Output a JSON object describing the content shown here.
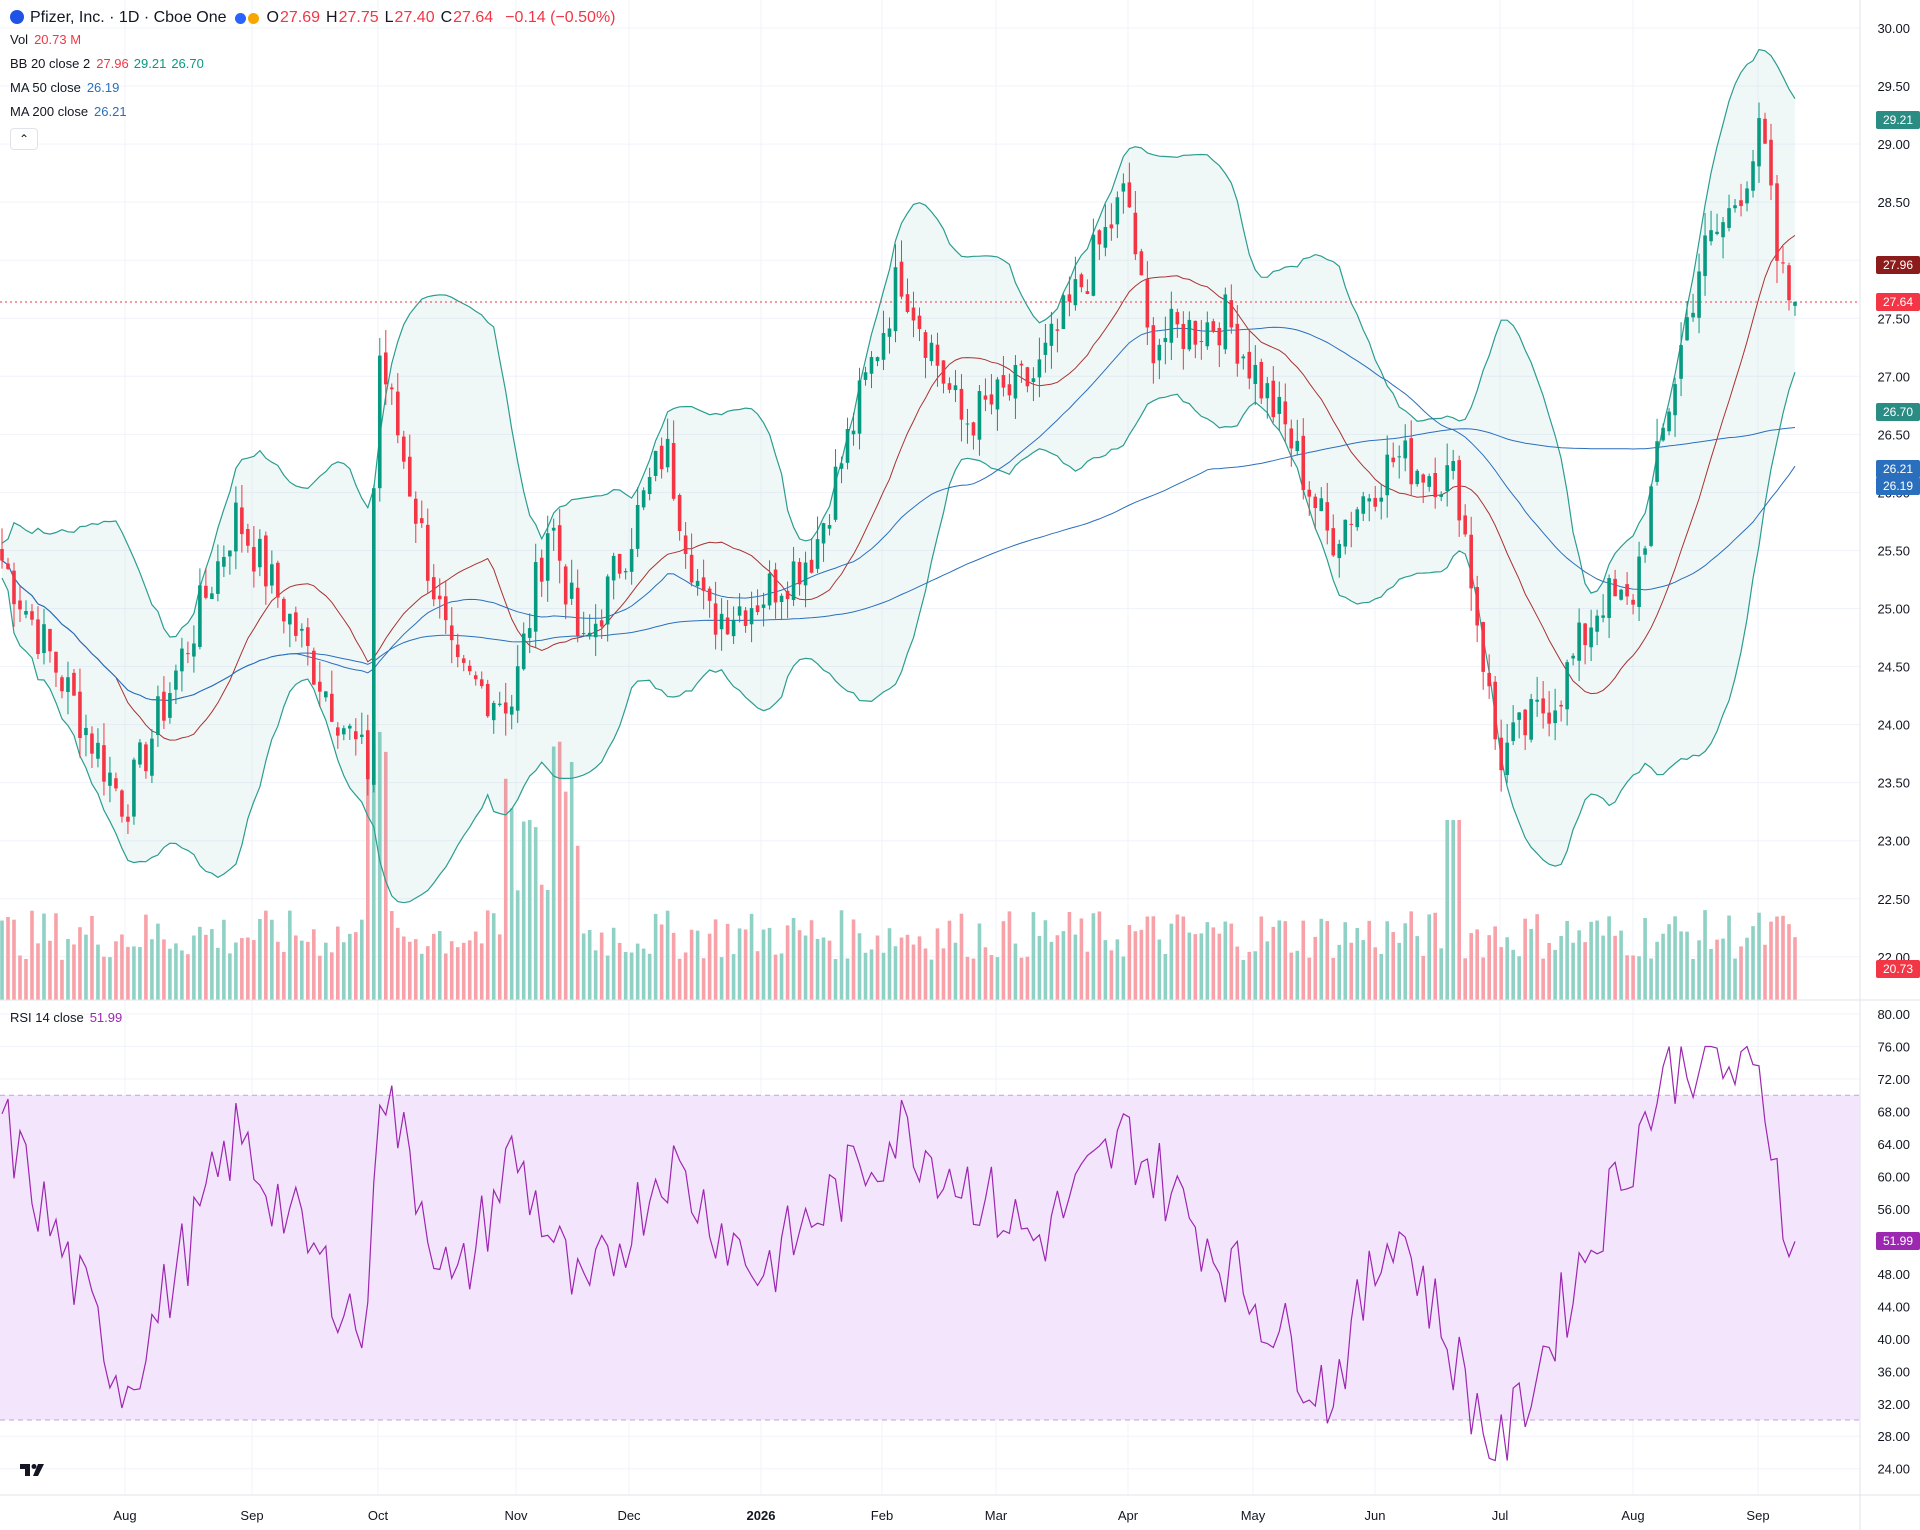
{
  "header": {
    "symbol": "Pfizer, Inc. · 1D · Cboe One",
    "ohlc": [
      {
        "k": "O",
        "v": "27.69"
      },
      {
        "k": "H",
        "v": "27.75"
      },
      {
        "k": "L",
        "v": "27.40"
      },
      {
        "k": "C",
        "v": "27.64"
      }
    ],
    "change": "−0.14 (−0.50%)"
  },
  "indicators": {
    "vol": {
      "label": "Vol",
      "value": "20.73 M"
    },
    "bb": {
      "label": "BB 20 close 2",
      "basis": "27.96",
      "upper": "29.21",
      "lower": "26.70"
    },
    "ma50": {
      "label": "MA 50 close",
      "value": "26.19"
    },
    "ma200": {
      "label": "MA 200 close",
      "value": "26.21"
    },
    "rsi": {
      "label": "RSI 14 close",
      "value": "51.99"
    }
  },
  "price_axis": [
    "30.00",
    "29.50",
    "29.00",
    "28.50",
    "28.00",
    "27.50",
    "27.00",
    "26.50",
    "26.00",
    "25.50",
    "25.00",
    "24.50",
    "24.00",
    "23.50",
    "23.00",
    "22.50",
    "22.00"
  ],
  "rsi_axis": [
    "80.00",
    "76.00",
    "72.00",
    "68.00",
    "64.00",
    "60.00",
    "56.00",
    "52.00",
    "48.00",
    "44.00",
    "40.00",
    "36.00",
    "32.00",
    "28.00",
    "24.00"
  ],
  "x_axis": [
    "Aug",
    "Sep",
    "Oct",
    "Nov",
    "Dec",
    "2026",
    "Feb",
    "Mar",
    "Apr",
    "May",
    "Jun",
    "Jul",
    "Aug",
    "Sep"
  ],
  "badges": {
    "bb_upper": "29.21",
    "bb_basis": "27.96",
    "last_price": "27.64",
    "bb_lower": "26.70",
    "ma200": "26.21",
    "ma50": "26.19",
    "volume": "20.73 M",
    "rsi": "51.99"
  },
  "colors": {
    "up": "#089981",
    "down": "#f23645",
    "bb_band": "#2a9d8f",
    "bb_basis": "#a83232",
    "ma": "#2a6fbd",
    "rsi": "#9c27b0",
    "rsi_band": "#f3e5fc"
  },
  "chart_data": [
    {
      "type": "candlestick",
      "title": "Pfizer, Inc. · 1D · Cboe One",
      "x_range": [
        "2025-07",
        "2026-09"
      ],
      "ylim": [
        22.0,
        30.0
      ],
      "key_points": [
        {
          "date": "2025-07-01",
          "close": 25.5
        },
        {
          "date": "2025-08-01",
          "close": 23.3
        },
        {
          "date": "2025-08-28",
          "close": 25.8
        },
        {
          "date": "2025-09-29",
          "close": 23.6
        },
        {
          "date": "2025-10-01",
          "close": 27.3
        },
        {
          "date": "2025-10-20",
          "close": 24.4
        },
        {
          "date": "2025-11-03",
          "close": 24.2
        },
        {
          "date": "2025-11-12",
          "close": 25.8
        },
        {
          "date": "2025-11-20",
          "close": 24.6
        },
        {
          "date": "2025-12-10",
          "close": 26.4
        },
        {
          "date": "2025-12-20",
          "close": 24.9
        },
        {
          "date": "2026-01-02",
          "close": 25.1
        },
        {
          "date": "2026-01-15",
          "close": 25.5
        },
        {
          "date": "2026-02-05",
          "close": 27.9
        },
        {
          "date": "2026-02-20",
          "close": 26.6
        },
        {
          "date": "2026-03-10",
          "close": 27.0
        },
        {
          "date": "2026-04-01",
          "close": 28.6
        },
        {
          "date": "2026-04-06",
          "close": 27.3
        },
        {
          "date": "2026-04-25",
          "close": 27.5
        },
        {
          "date": "2026-05-10",
          "close": 26.5
        },
        {
          "date": "2026-05-20",
          "close": 25.6
        },
        {
          "date": "2026-06-05",
          "close": 26.3
        },
        {
          "date": "2026-06-20",
          "close": 26.1
        },
        {
          "date": "2026-06-30",
          "close": 23.7
        },
        {
          "date": "2026-07-15",
          "close": 24.3
        },
        {
          "date": "2026-07-25",
          "close": 25.1
        },
        {
          "date": "2026-08-01",
          "close": 25.0
        },
        {
          "date": "2026-08-10",
          "close": 26.7
        },
        {
          "date": "2026-08-18",
          "close": 28.0
        },
        {
          "date": "2026-08-25",
          "close": 28.4
        },
        {
          "date": "2026-09-02",
          "close": 29.1
        },
        {
          "date": "2026-09-06",
          "close": 27.9
        },
        {
          "date": "2026-09-09",
          "close": 27.64
        }
      ],
      "last": {
        "open": 27.69,
        "high": 27.75,
        "low": 27.4,
        "close": 27.64
      },
      "overlays": [
        {
          "name": "BB 20 close 2",
          "basis": 27.96,
          "upper": 29.21,
          "lower": 26.7
        },
        {
          "name": "MA 50 close",
          "value": 26.19
        },
        {
          "name": "MA 200 close",
          "value": 26.21
        }
      ]
    },
    {
      "type": "bar",
      "title": "Vol",
      "last_value": "20.73 M"
    },
    {
      "type": "line",
      "title": "RSI 14 close",
      "ylim": [
        24,
        80
      ],
      "band": [
        30,
        70
      ],
      "key_points": [
        {
          "date": "2025-07-01",
          "value": 68
        },
        {
          "date": "2025-08-01",
          "value": 34
        },
        {
          "date": "2025-08-28",
          "value": 65
        },
        {
          "date": "2025-09-29",
          "value": 40
        },
        {
          "date": "2025-10-01",
          "value": 74
        },
        {
          "date": "2025-10-20",
          "value": 45
        },
        {
          "date": "2025-11-03",
          "value": 63
        },
        {
          "date": "2025-11-20",
          "value": 44
        },
        {
          "date": "2025-12-10",
          "value": 62
        },
        {
          "date": "2026-01-02",
          "value": 48
        },
        {
          "date": "2026-02-05",
          "value": 66
        },
        {
          "date": "2026-03-10",
          "value": 52
        },
        {
          "date": "2026-04-01",
          "value": 65
        },
        {
          "date": "2026-05-20",
          "value": 33
        },
        {
          "date": "2026-06-05",
          "value": 55
        },
        {
          "date": "2026-06-30",
          "value": 25
        },
        {
          "date": "2026-07-25",
          "value": 55
        },
        {
          "date": "2026-08-10",
          "value": 73
        },
        {
          "date": "2026-08-18",
          "value": 75
        },
        {
          "date": "2026-09-02",
          "value": 71
        },
        {
          "date": "2026-09-09",
          "value": 51.99
        }
      ]
    }
  ]
}
